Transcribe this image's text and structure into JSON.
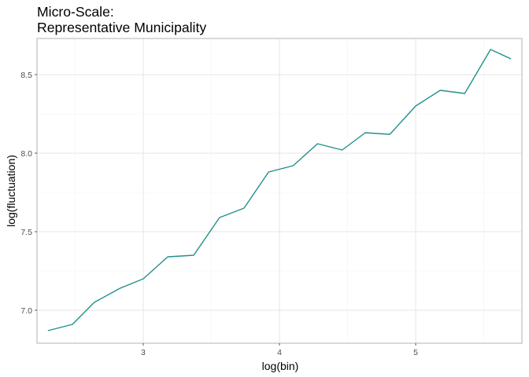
{
  "chart_data": {
    "type": "line",
    "title_line1": "Micro-Scale:",
    "title_line2": "Representative Municipality",
    "xlabel": "log(bin)",
    "ylabel": "log(fluctuation)",
    "xlim": [
      2.22,
      5.78
    ],
    "ylim": [
      6.79,
      8.73
    ],
    "x_ticks": [
      3,
      4,
      5
    ],
    "x_tick_labels": [
      "3",
      "4",
      "5"
    ],
    "y_ticks": [
      7.0,
      7.5,
      8.0,
      8.5
    ],
    "y_tick_labels": [
      "7.0",
      "7.5",
      "8.0",
      "8.5"
    ],
    "grid": true,
    "series": [
      {
        "color": "#21908C",
        "x": [
          2.3,
          2.48,
          2.64,
          2.83,
          3.0,
          3.18,
          3.37,
          3.56,
          3.74,
          3.92,
          4.1,
          4.28,
          4.46,
          4.63,
          4.81,
          5.0,
          5.18,
          5.36,
          5.55,
          5.7
        ],
        "y": [
          6.87,
          6.91,
          7.05,
          7.14,
          7.2,
          7.34,
          7.35,
          7.59,
          7.65,
          7.88,
          7.92,
          8.06,
          8.02,
          8.13,
          8.12,
          8.3,
          8.4,
          8.38,
          8.66,
          8.6
        ]
      }
    ]
  }
}
